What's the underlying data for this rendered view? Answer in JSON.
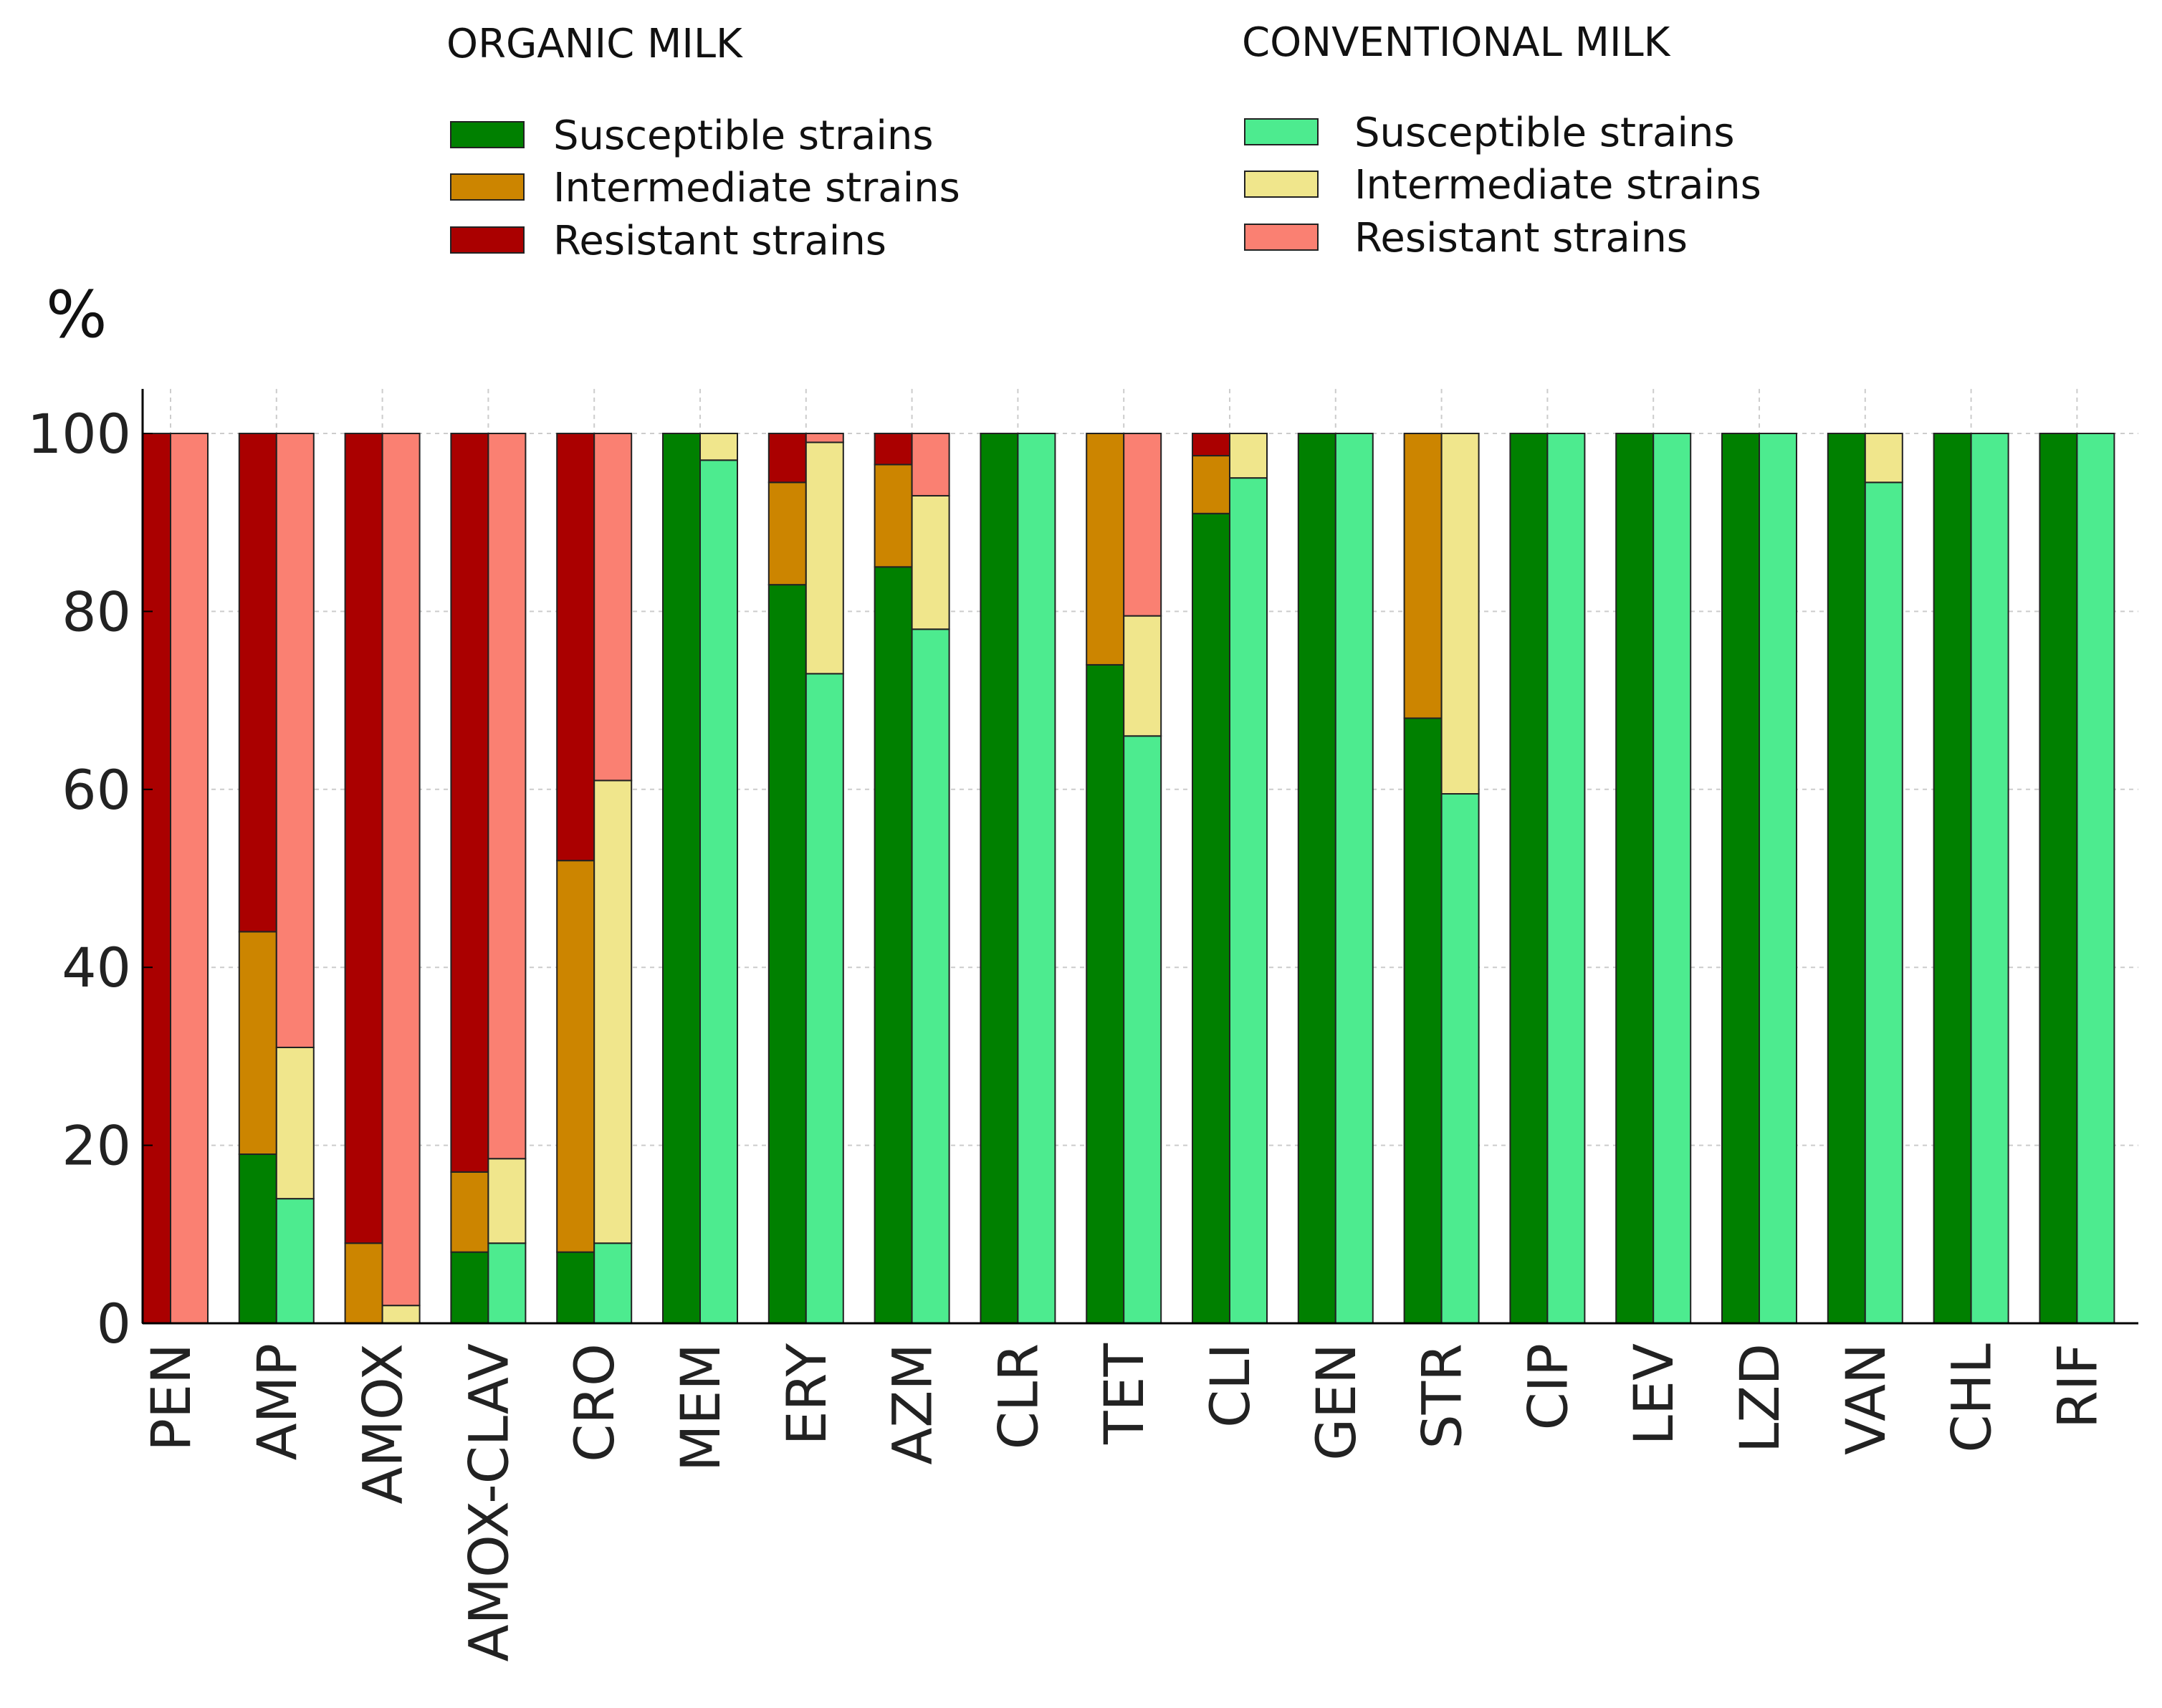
{
  "chart_data": {
    "type": "bar",
    "stacked": true,
    "ylabel": "%",
    "ylim": [
      0,
      105
    ],
    "yticks": [
      0,
      20,
      40,
      60,
      80,
      100
    ],
    "grid": true,
    "categories": [
      "PEN",
      "AMP",
      "AMOX",
      "AMOX-CLAV",
      "CRO",
      "MEM",
      "ERY",
      "AZM",
      "CLR",
      "TET",
      "CLI",
      "GEN",
      "STR",
      "CIP",
      "LEV",
      "LZD",
      "VAN",
      "CHL",
      "RIF"
    ],
    "groups": [
      {
        "name": "ORGANIC MILK",
        "series": [
          {
            "name": "Susceptible strains",
            "color": "#008000",
            "values": [
              0,
              19,
              0,
              8,
              8,
              100,
              83,
              85,
              100,
              74,
              91,
              100,
              68,
              100,
              100,
              100,
              100,
              100,
              100
            ]
          },
          {
            "name": "Intermediate strains",
            "color": "#cc8500",
            "values": [
              0,
              25,
              9,
              9,
              44,
              0,
              11.5,
              11.5,
              0,
              26,
              6.5,
              0,
              32,
              0,
              0,
              0,
              0,
              0,
              0
            ]
          },
          {
            "name": "Resistant strains",
            "color": "#aa0000",
            "values": [
              100,
              56,
              91,
              83,
              48,
              0,
              5.5,
              3.5,
              0,
              0,
              2.5,
              0,
              0,
              0,
              0,
              0,
              0,
              0,
              0
            ]
          }
        ]
      },
      {
        "name": "CONVENTIONAL MILK",
        "series": [
          {
            "name": "Susceptible strains",
            "color": "#4deb8f",
            "values": [
              0,
              14,
              0,
              9,
              9,
              97,
              73,
              78,
              100,
              66,
              95,
              100,
              59.5,
              100,
              100,
              100,
              94.5,
              100,
              100
            ]
          },
          {
            "name": "Intermediate strains",
            "color": "#f0e68c",
            "values": [
              0,
              17,
              2,
              9.5,
              52,
              3,
              26,
              15,
              0,
              13.5,
              5,
              0,
              40.5,
              0,
              0,
              0,
              5.5,
              0,
              0
            ]
          },
          {
            "name": "Resistant strains",
            "color": "#fa8072",
            "values": [
              100,
              69,
              98,
              81.5,
              39,
              0,
              1,
              7,
              0,
              20.5,
              0,
              0,
              0,
              0,
              0,
              0,
              0,
              0,
              0
            ]
          }
        ]
      }
    ]
  }
}
